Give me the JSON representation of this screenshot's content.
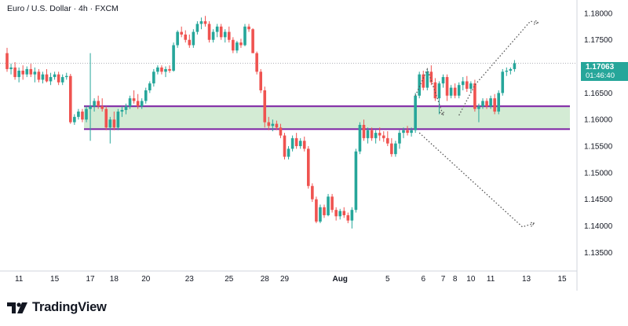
{
  "header": {
    "title": "Euro / U.S. Dollar · 4h · FXCM"
  },
  "brand": {
    "name": "TradingView",
    "logo_icon": "tradingview-logo-icon"
  },
  "last_price": {
    "value": "1.17063",
    "countdown": "01:46:40",
    "color": "#26a69a"
  },
  "colors": {
    "up": "#26a69a",
    "down": "#ef5350",
    "zone_fill": "#c8e6c9",
    "zone_border": "#7b1fa2",
    "dotted": "#555555"
  },
  "chart_data": {
    "type": "candlestick",
    "symbol": "EURUSD",
    "timeframe": "4h",
    "ylim": [
      1.1315,
      1.1825
    ],
    "yticks": [
      1.135,
      1.14,
      1.145,
      1.15,
      1.155,
      1.16,
      1.165,
      1.175,
      1.18
    ],
    "ytick_labels": [
      "1.13500",
      "1.14000",
      "1.14500",
      "1.15000",
      "1.15500",
      "1.16000",
      "1.16500",
      "1.17500",
      "1.18000"
    ],
    "xticks": [
      {
        "label": "11",
        "slot": 3
      },
      {
        "label": "15",
        "slot": 12
      },
      {
        "label": "17",
        "slot": 21
      },
      {
        "label": "18",
        "slot": 27
      },
      {
        "label": "20",
        "slot": 35
      },
      {
        "label": "23",
        "slot": 46
      },
      {
        "label": "25",
        "slot": 56
      },
      {
        "label": "28",
        "slot": 65
      },
      {
        "label": "29",
        "slot": 70
      },
      {
        "label": "Aug",
        "slot": 84
      },
      {
        "label": "5",
        "slot": 96
      },
      {
        "label": "6",
        "slot": 105
      },
      {
        "label": "7",
        "slot": 110
      },
      {
        "label": "8",
        "slot": 113
      },
      {
        "label": "10",
        "slot": 117
      },
      {
        "label": "11",
        "slot": 122
      },
      {
        "label": "13",
        "slot": 131
      },
      {
        "label": "15",
        "slot": 140
      }
    ],
    "candles": [
      [
        1.1725,
        1.1735,
        1.169,
        1.1695
      ],
      [
        1.1695,
        1.1705,
        1.1685,
        1.1698
      ],
      [
        1.1698,
        1.1708,
        1.1675,
        1.168
      ],
      [
        1.168,
        1.1698,
        1.167,
        1.1692
      ],
      [
        1.1692,
        1.1702,
        1.1675,
        1.1685
      ],
      [
        1.1685,
        1.17,
        1.168,
        1.1695
      ],
      [
        1.1695,
        1.1705,
        1.168,
        1.1685
      ],
      [
        1.1685,
        1.1698,
        1.167,
        1.169
      ],
      [
        1.169,
        1.1695,
        1.167,
        1.1675
      ],
      [
        1.1675,
        1.169,
        1.1668,
        1.1685
      ],
      [
        1.1685,
        1.1695,
        1.167,
        1.1672
      ],
      [
        1.1672,
        1.1688,
        1.1665,
        1.168
      ],
      [
        1.168,
        1.169,
        1.1675,
        1.1685
      ],
      [
        1.1685,
        1.169,
        1.1665,
        1.167
      ],
      [
        1.167,
        1.1685,
        1.1665,
        1.168
      ],
      [
        1.168,
        1.1688,
        1.1675,
        1.1682
      ],
      [
        1.1682,
        1.1686,
        1.1592,
        1.1595
      ],
      [
        1.1595,
        1.161,
        1.159,
        1.1605
      ],
      [
        1.1605,
        1.162,
        1.16,
        1.1615
      ],
      [
        1.1615,
        1.162,
        1.1595,
        1.16
      ],
      [
        1.16,
        1.1625,
        1.1595,
        1.162
      ],
      [
        1.162,
        1.1725,
        1.156,
        1.1625
      ],
      [
        1.1625,
        1.164,
        1.1615,
        1.1635
      ],
      [
        1.1635,
        1.1645,
        1.162,
        1.1625
      ],
      [
        1.1625,
        1.164,
        1.1615,
        1.162
      ],
      [
        1.162,
        1.1625,
        1.158,
        1.1585
      ],
      [
        1.1585,
        1.1605,
        1.1555,
        1.16
      ],
      [
        1.16,
        1.1615,
        1.158,
        1.1585
      ],
      [
        1.1585,
        1.162,
        1.158,
        1.1615
      ],
      [
        1.1615,
        1.1625,
        1.1605,
        1.1618
      ],
      [
        1.1618,
        1.163,
        1.161,
        1.1625
      ],
      [
        1.1625,
        1.1645,
        1.162,
        1.164
      ],
      [
        1.164,
        1.1655,
        1.163,
        1.1635
      ],
      [
        1.1635,
        1.1648,
        1.162,
        1.1625
      ],
      [
        1.1625,
        1.164,
        1.162,
        1.1635
      ],
      [
        1.1635,
        1.166,
        1.163,
        1.1655
      ],
      [
        1.1655,
        1.1672,
        1.165,
        1.1668
      ],
      [
        1.1668,
        1.1695,
        1.1662,
        1.169
      ],
      [
        1.169,
        1.1702,
        1.1685,
        1.1698
      ],
      [
        1.1698,
        1.1702,
        1.1685,
        1.169
      ],
      [
        1.169,
        1.17,
        1.168,
        1.1695
      ],
      [
        1.1695,
        1.1702,
        1.1688,
        1.1692
      ],
      [
        1.1692,
        1.1745,
        1.169,
        1.174
      ],
      [
        1.174,
        1.1768,
        1.1735,
        1.1765
      ],
      [
        1.1765,
        1.1775,
        1.1755,
        1.176
      ],
      [
        1.176,
        1.1768,
        1.1745,
        1.175
      ],
      [
        1.175,
        1.176,
        1.1735,
        1.174
      ],
      [
        1.174,
        1.177,
        1.1735,
        1.1765
      ],
      [
        1.1765,
        1.1785,
        1.176,
        1.178
      ],
      [
        1.178,
        1.1792,
        1.177,
        1.1785
      ],
      [
        1.1785,
        1.1795,
        1.1775,
        1.178
      ],
      [
        1.178,
        1.1785,
        1.1745,
        1.175
      ],
      [
        1.175,
        1.177,
        1.1745,
        1.1765
      ],
      [
        1.1765,
        1.178,
        1.1755,
        1.1775
      ],
      [
        1.1775,
        1.178,
        1.175,
        1.1755
      ],
      [
        1.1755,
        1.177,
        1.1745,
        1.1765
      ],
      [
        1.1765,
        1.1775,
        1.1745,
        1.175
      ],
      [
        1.175,
        1.1755,
        1.1725,
        1.173
      ],
      [
        1.173,
        1.1748,
        1.1725,
        1.1745
      ],
      [
        1.1745,
        1.1752,
        1.1735,
        1.174
      ],
      [
        1.174,
        1.178,
        1.1738,
        1.1775
      ],
      [
        1.1775,
        1.178,
        1.1765,
        1.177
      ],
      [
        1.177,
        1.1772,
        1.1725,
        1.1725
      ],
      [
        1.1725,
        1.1728,
        1.1685,
        1.169
      ],
      [
        1.169,
        1.1695,
        1.165,
        1.1655
      ],
      [
        1.1655,
        1.1662,
        1.1585,
        1.1595
      ],
      [
        1.1595,
        1.1605,
        1.158,
        1.1588
      ],
      [
        1.1588,
        1.16,
        1.1578,
        1.1592
      ],
      [
        1.1592,
        1.1598,
        1.158,
        1.1585
      ],
      [
        1.1585,
        1.1592,
        1.1565,
        1.157
      ],
      [
        1.157,
        1.1575,
        1.1525,
        1.153
      ],
      [
        1.153,
        1.155,
        1.1525,
        1.1545
      ],
      [
        1.1545,
        1.157,
        1.154,
        1.1565
      ],
      [
        1.1565,
        1.1575,
        1.1545,
        1.155
      ],
      [
        1.155,
        1.1565,
        1.1545,
        1.156
      ],
      [
        1.156,
        1.1568,
        1.154,
        1.1545
      ],
      [
        1.1545,
        1.155,
        1.147,
        1.1475
      ],
      [
        1.1475,
        1.148,
        1.1445,
        1.145
      ],
      [
        1.145,
        1.1455,
        1.1405,
        1.1408
      ],
      [
        1.1408,
        1.144,
        1.1405,
        1.1435
      ],
      [
        1.1435,
        1.144,
        1.1415,
        1.142
      ],
      [
        1.142,
        1.146,
        1.1418,
        1.1455
      ],
      [
        1.1455,
        1.146,
        1.1425,
        1.143
      ],
      [
        1.143,
        1.1435,
        1.141,
        1.1418
      ],
      [
        1.1418,
        1.1432,
        1.1412,
        1.1428
      ],
      [
        1.1428,
        1.1435,
        1.1415,
        1.142
      ],
      [
        1.142,
        1.1425,
        1.1405,
        1.141
      ],
      [
        1.141,
        1.1435,
        1.1395,
        1.143
      ],
      [
        1.143,
        1.1545,
        1.1425,
        1.154
      ],
      [
        1.154,
        1.1595,
        1.1535,
        1.159
      ],
      [
        1.159,
        1.16,
        1.156,
        1.1565
      ],
      [
        1.1565,
        1.1585,
        1.1555,
        1.158
      ],
      [
        1.158,
        1.1585,
        1.156,
        1.1565
      ],
      [
        1.1565,
        1.158,
        1.1555,
        1.1575
      ],
      [
        1.1575,
        1.1585,
        1.156,
        1.157
      ],
      [
        1.157,
        1.1578,
        1.1558,
        1.1565
      ],
      [
        1.1565,
        1.1578,
        1.155,
        1.1555
      ],
      [
        1.1555,
        1.1565,
        1.153,
        1.1535
      ],
      [
        1.1535,
        1.156,
        1.153,
        1.1555
      ],
      [
        1.1555,
        1.158,
        1.1545,
        1.1575
      ],
      [
        1.1575,
        1.1585,
        1.1565,
        1.158
      ],
      [
        1.158,
        1.1588,
        1.157,
        1.1575
      ],
      [
        1.1575,
        1.1585,
        1.1568,
        1.158
      ],
      [
        1.158,
        1.165,
        1.1575,
        1.1645
      ],
      [
        1.1645,
        1.169,
        1.164,
        1.1685
      ],
      [
        1.1685,
        1.1692,
        1.1655,
        1.166
      ],
      [
        1.166,
        1.1695,
        1.1655,
        1.169
      ],
      [
        1.169,
        1.1702,
        1.1665,
        1.167
      ],
      [
        1.167,
        1.1678,
        1.1635,
        1.164
      ],
      [
        1.164,
        1.1672,
        1.161,
        1.1668
      ],
      [
        1.1668,
        1.1685,
        1.166,
        1.168
      ],
      [
        1.168,
        1.1685,
        1.1635,
        1.1645
      ],
      [
        1.1645,
        1.1665,
        1.164,
        1.166
      ],
      [
        1.166,
        1.1668,
        1.164,
        1.1645
      ],
      [
        1.1645,
        1.167,
        1.164,
        1.1665
      ],
      [
        1.1665,
        1.168,
        1.1655,
        1.1672
      ],
      [
        1.1672,
        1.1682,
        1.1652,
        1.1658
      ],
      [
        1.1658,
        1.1672,
        1.165,
        1.1668
      ],
      [
        1.1668,
        1.1675,
        1.1615,
        1.162
      ],
      [
        1.162,
        1.163,
        1.1595,
        1.1625
      ],
      [
        1.1625,
        1.164,
        1.162,
        1.1635
      ],
      [
        1.1635,
        1.164,
        1.162,
        1.1625
      ],
      [
        1.1625,
        1.1645,
        1.162,
        1.164
      ],
      [
        1.164,
        1.1648,
        1.161,
        1.1615
      ],
      [
        1.1615,
        1.1655,
        1.161,
        1.165
      ],
      [
        1.165,
        1.1695,
        1.1645,
        1.169
      ],
      [
        1.169,
        1.1698,
        1.1682,
        1.1692
      ],
      [
        1.1692,
        1.1698,
        1.1685,
        1.1695
      ],
      [
        1.1695,
        1.1712,
        1.169,
        1.1706
      ]
    ],
    "zone": {
      "low": 1.1582,
      "high": 1.1625,
      "from_slot": 20,
      "to_slot": 150
    },
    "last_price_line": 1.1706,
    "projections": [
      {
        "points": [
          [
            103,
            1.1645
          ],
          [
            106,
            1.1695
          ],
          [
            110,
            1.1608
          ]
        ]
      },
      {
        "points": [
          [
            104,
            1.1575
          ],
          [
            130,
            1.1398
          ],
          [
            133,
            1.1405
          ]
        ]
      },
      {
        "points": [
          [
            114,
            1.1608
          ],
          [
            118,
            1.1665
          ],
          [
            132,
            1.1785
          ],
          [
            134,
            1.1782
          ]
        ]
      }
    ],
    "grid": false,
    "legend": "none"
  }
}
